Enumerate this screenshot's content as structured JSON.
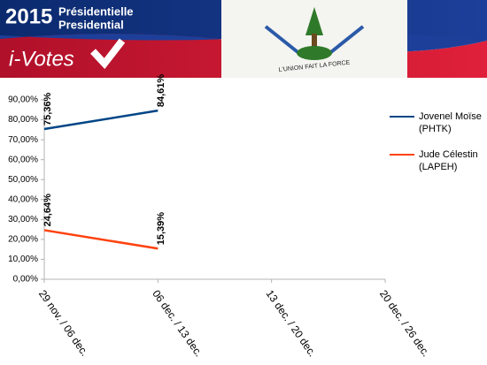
{
  "banner": {
    "year": "2015",
    "line1": "Présidentielle",
    "line2": "Presidential",
    "brand": "i-Votes",
    "motto": "L'UNION FAIT LA FORCE"
  },
  "chart_data": {
    "type": "line",
    "categories": [
      "29 nov. / 06 dec.",
      "06 dec. / 13 dec.",
      "13 dec. / 20 dec.",
      "20 dec. / 26 dec."
    ],
    "series": [
      {
        "name": "Jovenel Moïse (PHTK)",
        "color": "#004586",
        "values": [
          75.36,
          84.61,
          null,
          null
        ],
        "value_labels": [
          "75,36%",
          "84,61%",
          null,
          null
        ]
      },
      {
        "name": "Jude Célestin (LAPEH)",
        "color": "#ff420e",
        "values": [
          24.64,
          15.39,
          null,
          null
        ],
        "value_labels": [
          "24,64%",
          "15,39%",
          null,
          null
        ]
      }
    ],
    "ylim": [
      0,
      90
    ],
    "yticks": [
      {
        "value": 0,
        "label": "0,00%"
      },
      {
        "value": 10,
        "label": "10,00%"
      },
      {
        "value": 20,
        "label": "20,00%"
      },
      {
        "value": 30,
        "label": "30,00%"
      },
      {
        "value": 40,
        "label": "40,00%"
      },
      {
        "value": 50,
        "label": "50,00%"
      },
      {
        "value": 60,
        "label": "60,00%"
      },
      {
        "value": 70,
        "label": "70,00%"
      },
      {
        "value": 80,
        "label": "80,00%"
      },
      {
        "value": 90,
        "label": "90,00%"
      }
    ],
    "grid": false,
    "legend": "right"
  }
}
